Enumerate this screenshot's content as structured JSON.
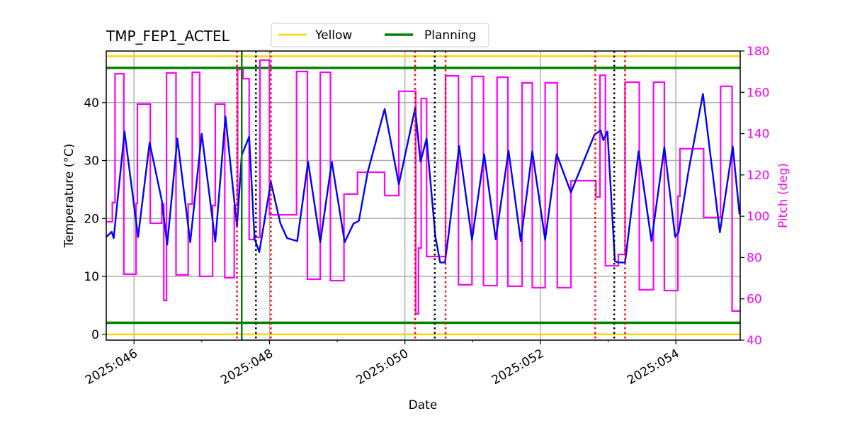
{
  "chart_data": {
    "type": "line",
    "title": "TMP_FEP1_ACTEL",
    "xlabel": "Date",
    "ylabel": "Temperature (°C)",
    "y2label": "Pitch (deg)",
    "xlim": [
      45.59,
      54.95
    ],
    "ylim": [
      -1,
      48.9
    ],
    "y2lim": [
      40,
      180
    ],
    "grid": true,
    "legend_placement": "top-center, above plot",
    "x_ticks": [
      {
        "value": 46,
        "label": "2025:046"
      },
      {
        "value": 48,
        "label": "2025:048"
      },
      {
        "value": 50,
        "label": "2025:050"
      },
      {
        "value": 52,
        "label": "2025:052"
      },
      {
        "value": 54,
        "label": "2025:054"
      }
    ],
    "x_minor_ticks": [
      47,
      49,
      51,
      53
    ],
    "y_ticks": [
      0,
      10,
      20,
      30,
      40
    ],
    "y2_ticks": [
      40,
      60,
      80,
      100,
      120,
      140,
      160,
      180
    ],
    "limit_lines": [
      {
        "name": "Yellow",
        "color": "#ffd700",
        "values": [
          48,
          0
        ]
      },
      {
        "name": "Planning",
        "color": "#008000",
        "values": [
          46,
          2
        ]
      }
    ],
    "vertical_lines": {
      "green_solid": [
        47.59
      ],
      "red_dotted": [
        47.52,
        48.02,
        50.15,
        50.6,
        52.81,
        53.25
      ],
      "black_dotted": [
        47.8,
        50.44,
        53.09
      ]
    },
    "temperature": {
      "color": "#0000ff",
      "points": [
        [
          45.59,
          16.8
        ],
        [
          45.67,
          17.7
        ],
        [
          45.7,
          16.6
        ],
        [
          45.86,
          35.0
        ],
        [
          46.06,
          16.8
        ],
        [
          46.23,
          33.1
        ],
        [
          46.41,
          23.1
        ],
        [
          46.49,
          15.5
        ],
        [
          46.64,
          33.8
        ],
        [
          46.83,
          15.9
        ],
        [
          47.0,
          34.6
        ],
        [
          47.2,
          16.0
        ],
        [
          47.35,
          37.6
        ],
        [
          47.52,
          18.6
        ],
        [
          47.59,
          30.9
        ],
        [
          47.7,
          34.1
        ],
        [
          47.78,
          16.5
        ],
        [
          47.85,
          14.2
        ],
        [
          48.02,
          26.3
        ],
        [
          48.16,
          19.2
        ],
        [
          48.26,
          16.6
        ],
        [
          48.41,
          16.1
        ],
        [
          48.57,
          29.8
        ],
        [
          48.75,
          15.9
        ],
        [
          48.92,
          29.8
        ],
        [
          49.11,
          15.9
        ],
        [
          49.24,
          19.1
        ],
        [
          49.32,
          19.6
        ],
        [
          49.45,
          28.0
        ],
        [
          49.7,
          38.9
        ],
        [
          49.91,
          25.9
        ],
        [
          50.15,
          39.0
        ],
        [
          50.23,
          29.8
        ],
        [
          50.32,
          33.8
        ],
        [
          50.45,
          16.8
        ],
        [
          50.52,
          12.4
        ],
        [
          50.59,
          12.4
        ],
        [
          50.64,
          16.8
        ],
        [
          50.8,
          32.5
        ],
        [
          50.99,
          16.3
        ],
        [
          51.17,
          31.1
        ],
        [
          51.34,
          16.4
        ],
        [
          51.53,
          31.7
        ],
        [
          51.71,
          16.1
        ],
        [
          51.88,
          31.6
        ],
        [
          52.07,
          16.3
        ],
        [
          52.24,
          31.1
        ],
        [
          52.45,
          24.5
        ],
        [
          52.8,
          34.5
        ],
        [
          52.89,
          35.2
        ],
        [
          52.93,
          33.5
        ],
        [
          52.99,
          35.0
        ],
        [
          53.1,
          12.6
        ],
        [
          53.15,
          12.4
        ],
        [
          53.25,
          12.4
        ],
        [
          53.45,
          31.6
        ],
        [
          53.64,
          16.1
        ],
        [
          53.83,
          32.3
        ],
        [
          53.99,
          16.8
        ],
        [
          54.04,
          17.6
        ],
        [
          54.19,
          28.4
        ],
        [
          54.4,
          41.5
        ],
        [
          54.65,
          17.6
        ],
        [
          54.84,
          32.4
        ],
        [
          54.94,
          20.7
        ]
      ]
    },
    "pitch": {
      "color": "#ff00ff",
      "steps": [
        [
          45.59,
          97.3
        ],
        [
          45.68,
          106.6
        ],
        [
          45.72,
          169.0
        ],
        [
          45.85,
          71.9
        ],
        [
          46.03,
          106.2
        ],
        [
          46.05,
          154.3
        ],
        [
          46.24,
          96.6
        ],
        [
          46.41,
          105.9
        ],
        [
          46.44,
          59.2
        ],
        [
          46.48,
          169.4
        ],
        [
          46.62,
          71.6
        ],
        [
          46.8,
          105.9
        ],
        [
          46.86,
          169.7
        ],
        [
          46.97,
          70.9
        ],
        [
          47.16,
          105.2
        ],
        [
          47.2,
          154.3
        ],
        [
          47.34,
          70.2
        ],
        [
          47.48,
          105.2
        ],
        [
          47.53,
          171.1
        ],
        [
          47.61,
          166.6
        ],
        [
          47.7,
          88.7
        ],
        [
          47.77,
          89.8
        ],
        [
          47.86,
          175.6
        ],
        [
          48.0,
          100.7
        ],
        [
          48.4,
          170.1
        ],
        [
          48.56,
          69.5
        ],
        [
          48.75,
          169.7
        ],
        [
          48.9,
          68.8
        ],
        [
          49.1,
          110.7
        ],
        [
          49.3,
          121.3
        ],
        [
          49.7,
          110.0
        ],
        [
          49.91,
          160.5
        ],
        [
          50.16,
          52.7
        ],
        [
          50.2,
          84.6
        ],
        [
          50.24,
          157.0
        ],
        [
          50.32,
          80.5
        ],
        [
          50.6,
          168.0
        ],
        [
          50.79,
          66.8
        ],
        [
          50.99,
          167.7
        ],
        [
          51.16,
          66.4
        ],
        [
          51.36,
          167.3
        ],
        [
          51.52,
          66.1
        ],
        [
          51.73,
          164.6
        ],
        [
          51.88,
          65.4
        ],
        [
          52.07,
          164.6
        ],
        [
          52.25,
          65.4
        ],
        [
          52.45,
          117.2
        ],
        [
          52.82,
          109.3
        ],
        [
          52.88,
          168.3
        ],
        [
          52.96,
          76.0
        ],
        [
          53.15,
          81.5
        ],
        [
          53.25,
          164.9
        ],
        [
          53.46,
          64.4
        ],
        [
          53.67,
          164.9
        ],
        [
          53.83,
          64.0
        ],
        [
          54.03,
          109.7
        ],
        [
          54.06,
          132.7
        ],
        [
          54.41,
          99.4
        ],
        [
          54.66,
          162.9
        ],
        [
          54.83,
          54.1
        ],
        [
          54.95,
          54.1
        ]
      ]
    },
    "legend": [
      {
        "label": "Yellow",
        "color": "#ffd700"
      },
      {
        "label": "Planning",
        "color": "#008000"
      }
    ]
  }
}
